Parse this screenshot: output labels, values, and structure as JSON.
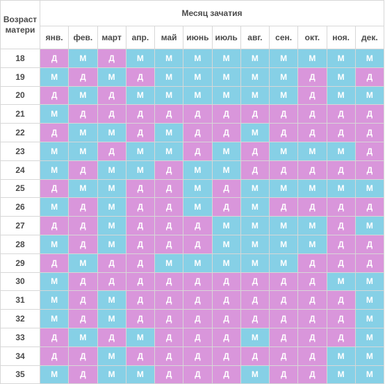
{
  "header": {
    "age_header": "Возраст матери",
    "month_header": "Месяц зачатия"
  },
  "months": [
    "янв.",
    "фев.",
    "март",
    "апр.",
    "май",
    "июнь",
    "июль",
    "авг.",
    "сен.",
    "окт.",
    "ноя.",
    "дек."
  ],
  "colors": {
    "M": "#86d0e6",
    "D": "#d996db"
  },
  "rows": [
    {
      "age": "18",
      "cells": [
        "Д",
        "М",
        "Д",
        "М",
        "М",
        "М",
        "М",
        "М",
        "М",
        "М",
        "М",
        "М"
      ]
    },
    {
      "age": "19",
      "cells": [
        "М",
        "Д",
        "М",
        "Д",
        "М",
        "М",
        "М",
        "М",
        "М",
        "Д",
        "М",
        "Д"
      ]
    },
    {
      "age": "20",
      "cells": [
        "Д",
        "М",
        "Д",
        "М",
        "М",
        "М",
        "М",
        "М",
        "М",
        "Д",
        "М",
        "М"
      ]
    },
    {
      "age": "21",
      "cells": [
        "М",
        "Д",
        "Д",
        "Д",
        "Д",
        "Д",
        "Д",
        "Д",
        "Д",
        "Д",
        "Д",
        "Д"
      ]
    },
    {
      "age": "22",
      "cells": [
        "Д",
        "М",
        "М",
        "Д",
        "М",
        "Д",
        "Д",
        "М",
        "Д",
        "Д",
        "Д",
        "Д"
      ]
    },
    {
      "age": "23",
      "cells": [
        "М",
        "М",
        "Д",
        "М",
        "М",
        "Д",
        "М",
        "Д",
        "М",
        "М",
        "М",
        "Д"
      ]
    },
    {
      "age": "24",
      "cells": [
        "М",
        "Д",
        "М",
        "М",
        "Д",
        "М",
        "М",
        "Д",
        "Д",
        "Д",
        "Д",
        "Д"
      ]
    },
    {
      "age": "25",
      "cells": [
        "Д",
        "М",
        "М",
        "Д",
        "Д",
        "М",
        "Д",
        "М",
        "М",
        "М",
        "М",
        "М"
      ]
    },
    {
      "age": "26",
      "cells": [
        "М",
        "Д",
        "М",
        "Д",
        "Д",
        "М",
        "Д",
        "М",
        "Д",
        "Д",
        "Д",
        "Д"
      ]
    },
    {
      "age": "27",
      "cells": [
        "Д",
        "Д",
        "М",
        "Д",
        "Д",
        "Д",
        "М",
        "М",
        "М",
        "М",
        "Д",
        "М"
      ]
    },
    {
      "age": "28",
      "cells": [
        "М",
        "Д",
        "М",
        "Д",
        "Д",
        "Д",
        "М",
        "М",
        "М",
        "М",
        "Д",
        "Д"
      ]
    },
    {
      "age": "29",
      "cells": [
        "Д",
        "М",
        "Д",
        "Д",
        "М",
        "М",
        "М",
        "М",
        "М",
        "Д",
        "Д",
        "Д"
      ]
    },
    {
      "age": "30",
      "cells": [
        "М",
        "Д",
        "Д",
        "Д",
        "Д",
        "Д",
        "Д",
        "Д",
        "Д",
        "Д",
        "М",
        "М"
      ]
    },
    {
      "age": "31",
      "cells": [
        "М",
        "Д",
        "М",
        "Д",
        "Д",
        "Д",
        "Д",
        "Д",
        "Д",
        "Д",
        "Д",
        "М"
      ]
    },
    {
      "age": "32",
      "cells": [
        "М",
        "Д",
        "М",
        "Д",
        "Д",
        "Д",
        "Д",
        "Д",
        "Д",
        "Д",
        "Д",
        "М"
      ]
    },
    {
      "age": "33",
      "cells": [
        "Д",
        "М",
        "Д",
        "М",
        "Д",
        "Д",
        "Д",
        "М",
        "Д",
        "Д",
        "Д",
        "М"
      ]
    },
    {
      "age": "34",
      "cells": [
        "Д",
        "Д",
        "М",
        "Д",
        "Д",
        "Д",
        "Д",
        "Д",
        "Д",
        "Д",
        "М",
        "М"
      ]
    },
    {
      "age": "35",
      "cells": [
        "М",
        "Д",
        "М",
        "М",
        "Д",
        "Д",
        "Д",
        "М",
        "Д",
        "Д",
        "М",
        "М"
      ]
    }
  ]
}
